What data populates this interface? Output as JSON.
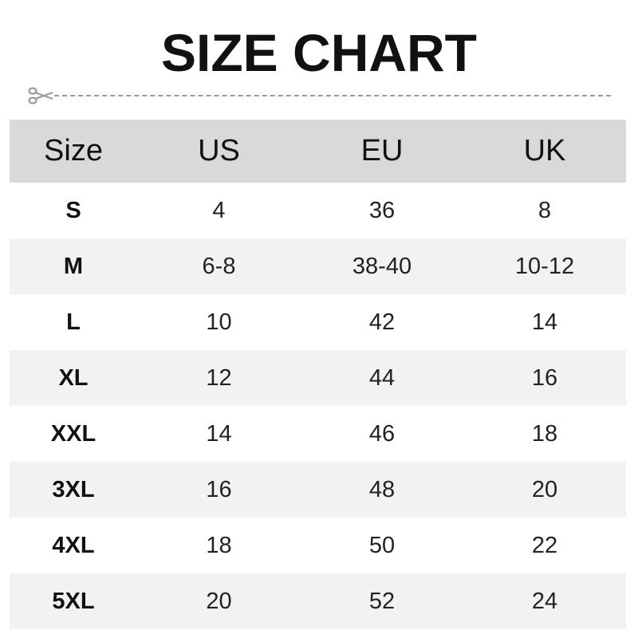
{
  "title": "SIZE CHART",
  "icons": {
    "cut": "scissors-icon"
  },
  "colors": {
    "header_bg": "#d9d9d9",
    "stripe_bg": "#f2f2f2"
  },
  "table": {
    "headers": [
      "Size",
      "US",
      "EU",
      "UK"
    ],
    "rows": [
      [
        "S",
        "4",
        "36",
        "8"
      ],
      [
        "M",
        "6-8",
        "38-40",
        "10-12"
      ],
      [
        "L",
        "10",
        "42",
        "14"
      ],
      [
        "XL",
        "12",
        "44",
        "16"
      ],
      [
        "XXL",
        "14",
        "46",
        "18"
      ],
      [
        "3XL",
        "16",
        "48",
        "20"
      ],
      [
        "4XL",
        "18",
        "50",
        "22"
      ],
      [
        "5XL",
        "20",
        "52",
        "24"
      ]
    ]
  }
}
